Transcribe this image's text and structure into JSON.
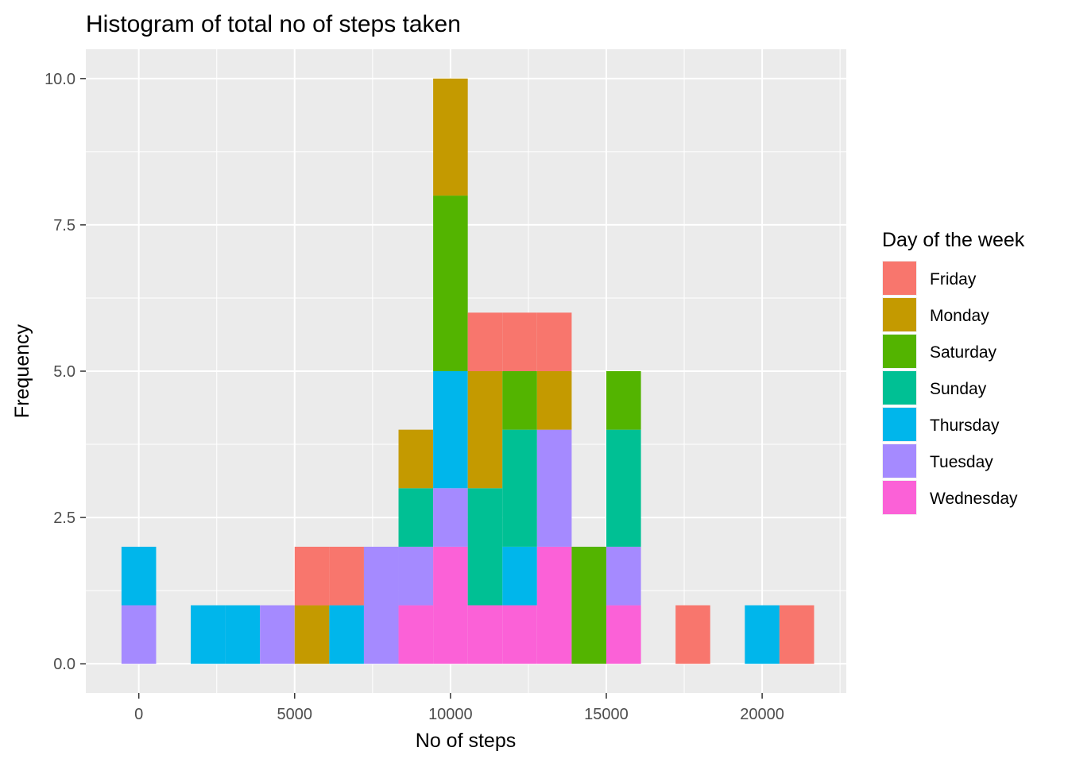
{
  "chart_data": {
    "type": "bar",
    "title": "Histogram of total no of steps taken",
    "xlabel": "No of steps",
    "ylabel": "Frequency",
    "xlim": [
      -1700,
      22700
    ],
    "ylim": [
      -0.5,
      10.5
    ],
    "x_ticks": [
      0,
      5000,
      10000,
      15000,
      20000
    ],
    "x_tick_labels": [
      "0",
      "5000",
      "10000",
      "15000",
      "20000"
    ],
    "y_ticks": [
      0,
      2.5,
      5,
      7.5,
      10
    ],
    "y_tick_labels": [
      "0.0",
      "2.5",
      "5.0",
      "7.5",
      "10.0"
    ],
    "grid": true,
    "bin_width": 1111,
    "bin_centers": [
      0,
      1111,
      2222,
      3333,
      4444,
      5556,
      6667,
      7778,
      8889,
      10000,
      11111,
      12222,
      13333,
      14444,
      15556,
      16667,
      17778,
      18889,
      20000,
      21111
    ],
    "legend": {
      "title": "Day of the week",
      "position": "right"
    },
    "series": [
      {
        "name": "Friday",
        "color": "#F8766D",
        "values": [
          0,
          0,
          0,
          0,
          0,
          1,
          1,
          0,
          0,
          0,
          1,
          1,
          1,
          0,
          0,
          0,
          1,
          0,
          0,
          1
        ]
      },
      {
        "name": "Monday",
        "color": "#C49A00",
        "values": [
          0,
          0,
          0,
          0,
          0,
          1,
          0,
          0,
          1,
          2,
          2,
          0,
          1,
          0,
          0,
          0,
          0,
          0,
          0,
          0
        ]
      },
      {
        "name": "Saturday",
        "color": "#53B400",
        "values": [
          0,
          0,
          0,
          0,
          0,
          0,
          0,
          0,
          0,
          3,
          0,
          1,
          0,
          2,
          1,
          0,
          0,
          0,
          0,
          0
        ]
      },
      {
        "name": "Sunday",
        "color": "#00C094",
        "values": [
          0,
          0,
          0,
          0,
          0,
          0,
          0,
          0,
          1,
          0,
          2,
          2,
          0,
          0,
          2,
          0,
          0,
          0,
          0,
          0
        ]
      },
      {
        "name": "Thursday",
        "color": "#00B6EB",
        "values": [
          1,
          0,
          1,
          1,
          0,
          0,
          1,
          0,
          0,
          2,
          0,
          1,
          0,
          0,
          0,
          0,
          0,
          0,
          1,
          0
        ]
      },
      {
        "name": "Tuesday",
        "color": "#A58AFF",
        "values": [
          1,
          0,
          0,
          0,
          1,
          0,
          0,
          2,
          1,
          1,
          0,
          0,
          2,
          0,
          1,
          0,
          0,
          0,
          0,
          0
        ]
      },
      {
        "name": "Wednesday",
        "color": "#FB61D7",
        "values": [
          0,
          0,
          0,
          0,
          0,
          0,
          0,
          0,
          1,
          2,
          1,
          1,
          2,
          0,
          1,
          0,
          0,
          0,
          0,
          0
        ]
      }
    ]
  }
}
